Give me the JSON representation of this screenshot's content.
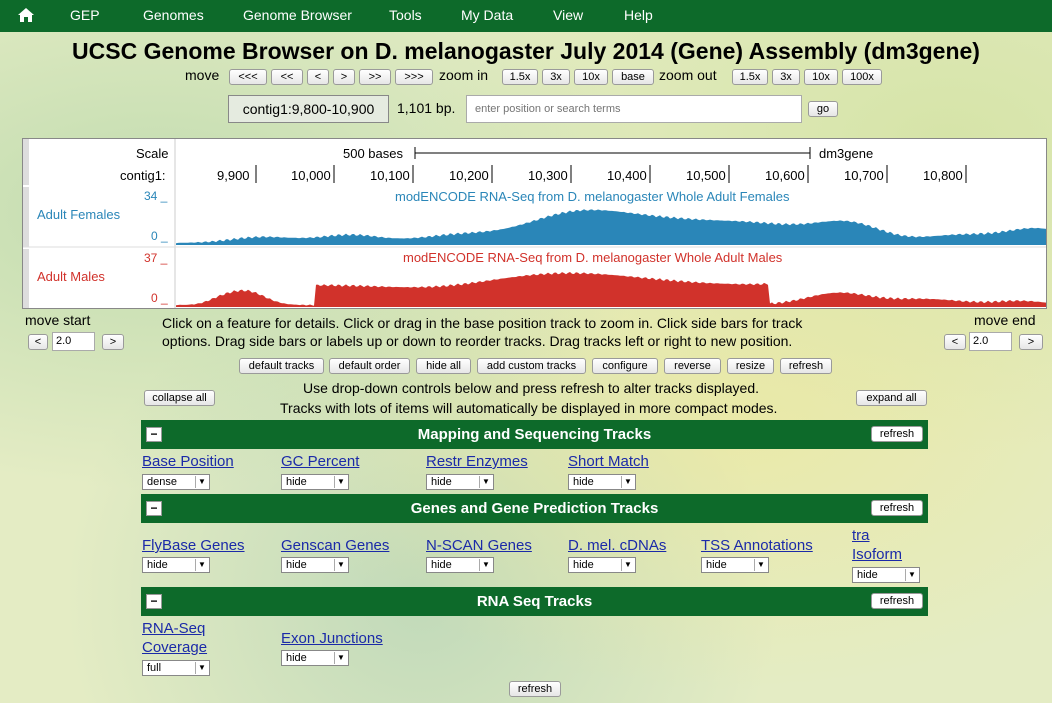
{
  "nav": {
    "items": [
      "GEP",
      "Genomes",
      "Genome Browser",
      "Tools",
      "My Data",
      "View",
      "Help"
    ]
  },
  "title": "UCSC Genome Browser on D. melanogaster July 2014 (Gene) Assembly (dm3gene)",
  "controls": {
    "move_label": "move",
    "move_buttons": [
      "<<<",
      "<<",
      "<",
      ">",
      ">>",
      ">>>"
    ],
    "zoom_in_label": "zoom in",
    "zoom_in_buttons": [
      "1.5x",
      "3x",
      "10x",
      "base"
    ],
    "zoom_out_label": "zoom out",
    "zoom_out_buttons": [
      "1.5x",
      "3x",
      "10x",
      "100x"
    ],
    "position": "contig1:9,800-10,900",
    "size": "1,101 bp.",
    "search_placeholder": "enter position or search terms",
    "go_label": "go"
  },
  "image": {
    "scale_label": "Scale",
    "scale_bar_label": "500 bases",
    "assembly": "dm3gene",
    "contig_label": "contig1:",
    "ticks": [
      "9,900",
      "10,000",
      "10,100",
      "10,200",
      "10,300",
      "10,400",
      "10,500",
      "10,600",
      "10,700",
      "10,800"
    ],
    "tracks": [
      {
        "side_label": "Adult Females",
        "title": "modENCODE RNA-Seq from D. melanogaster Whole Adult Females",
        "max": "34 _",
        "min": "0 _",
        "color": "#2a86b8"
      },
      {
        "side_label": "Adult Males",
        "title": "modENCODE RNA-Seq from D. melanogaster Whole Adult Males",
        "max": "37 _",
        "min": "0 _",
        "color": "#d1322b"
      }
    ]
  },
  "move_start": {
    "label": "move start",
    "left": "<",
    "value": "2.0",
    "right": ">"
  },
  "move_end": {
    "label": "move end",
    "left": "<",
    "value": "2.0",
    "right": ">"
  },
  "hint": {
    "line1": "Click on a feature for details. Click or drag in the base position track to zoom in. Click side bars for track",
    "line2": "options. Drag side bars or labels up or down to reorder tracks. Drag tracks left or right to new position."
  },
  "action_buttons": [
    "default tracks",
    "default order",
    "hide all",
    "add custom tracks",
    "configure",
    "reverse",
    "resize",
    "refresh"
  ],
  "collapse_all": "collapse all",
  "expand_all": "expand all",
  "dropdown_note": {
    "line1": "Use drop-down controls below and press refresh to alter tracks displayed.",
    "line2": "Tracks with lots of items will automatically be displayed in more compact modes."
  },
  "sections": [
    {
      "title": "Mapping and Sequencing Tracks",
      "collapse": "−",
      "refresh": "refresh",
      "tracks": [
        {
          "name": "Base Position",
          "value": "dense"
        },
        {
          "name": "GC Percent",
          "value": "hide"
        },
        {
          "name": "Restr Enzymes",
          "value": "hide"
        },
        {
          "name": "Short Match",
          "value": "hide"
        }
      ]
    },
    {
      "title": "Genes and Gene Prediction Tracks",
      "collapse": "−",
      "refresh": "refresh",
      "tracks": [
        {
          "name": "FlyBase Genes",
          "value": "hide"
        },
        {
          "name": "Genscan Genes",
          "value": "hide"
        },
        {
          "name": "N-SCAN Genes",
          "value": "hide"
        },
        {
          "name": "D. mel. cDNAs",
          "value": "hide"
        },
        {
          "name": "TSS Annotations",
          "value": "hide"
        },
        {
          "name": "tra",
          "name2": "Isoform",
          "value": "hide"
        }
      ]
    },
    {
      "title": "RNA Seq Tracks",
      "collapse": "−",
      "refresh": "refresh",
      "tracks": [
        {
          "name": "RNA-Seq",
          "name2": "Coverage",
          "value": "full"
        },
        {
          "name": "Exon Junctions",
          "value": "hide"
        }
      ]
    }
  ],
  "bottom_refresh": "refresh"
}
